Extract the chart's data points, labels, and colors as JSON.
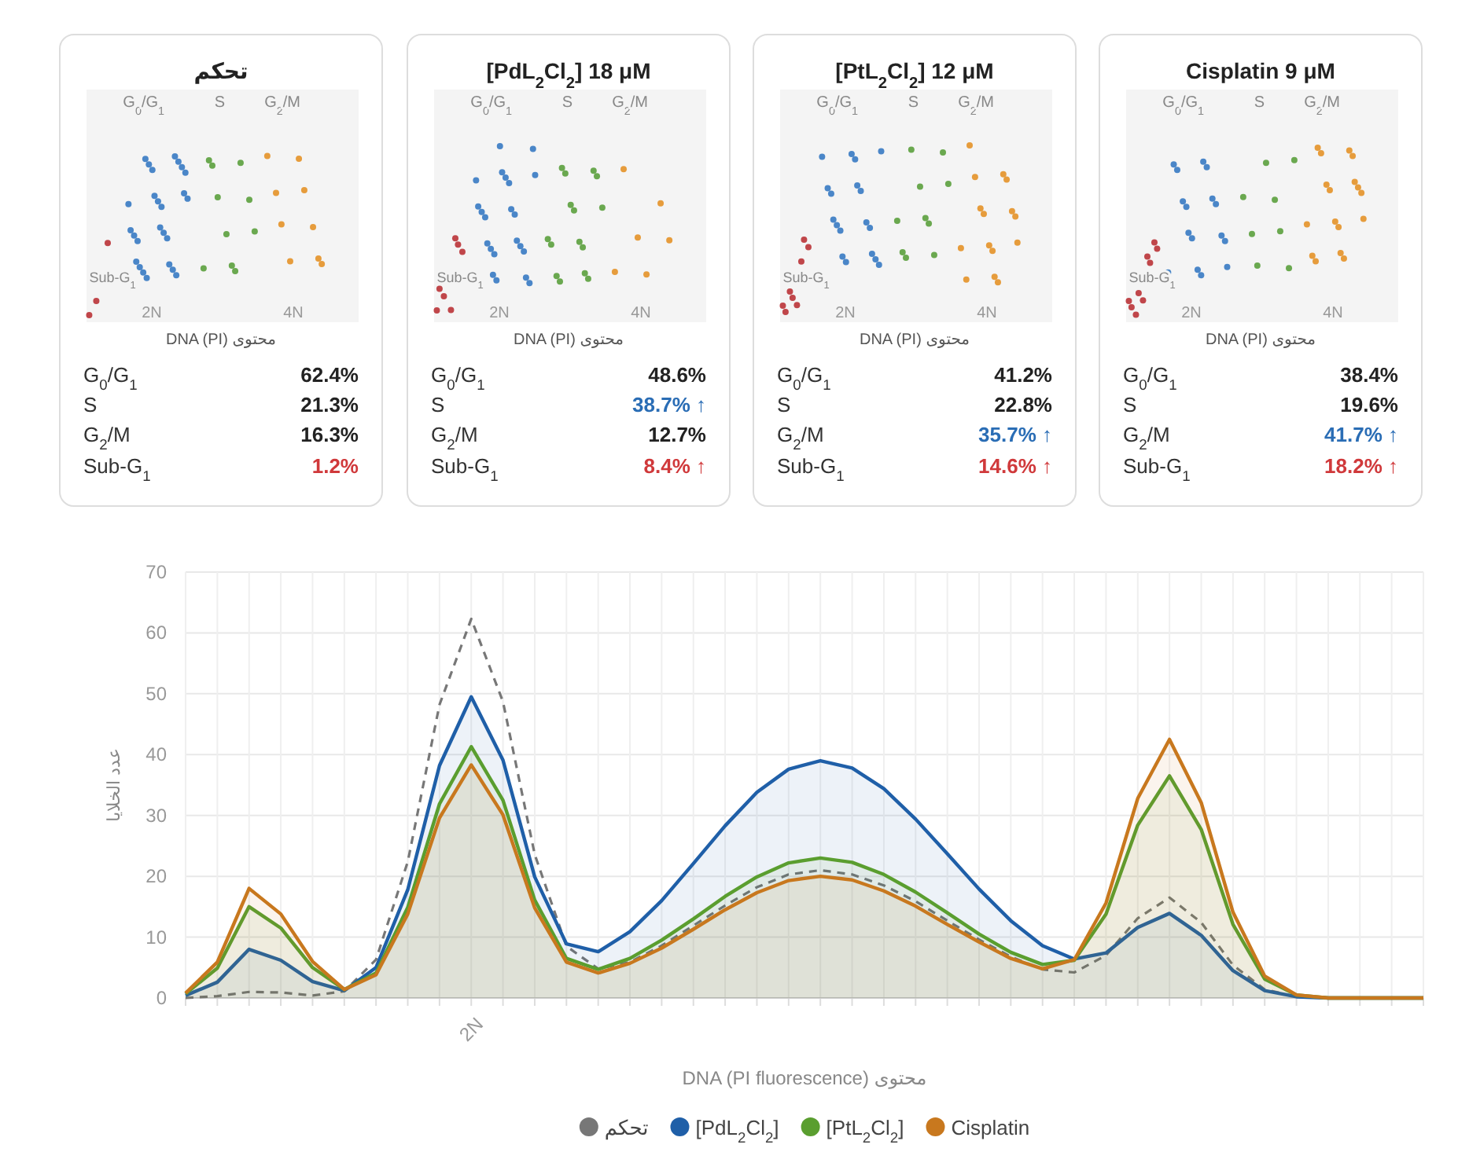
{
  "chart_data": [
    {
      "type": "other",
      "title": "تحكم",
      "xlabel": "محتوى DNA (PI)",
      "annotations": [
        "G$_{0}$/G$_{1}$",
        "S",
        "G$_{2}$/M",
        "2N",
        "4N",
        "Sub-G$_{1}$"
      ],
      "categories": [
        "G$_{0}$/G$_{1}$",
        "S",
        "G$_{2}$/M",
        "Sub-G$_{1}$"
      ],
      "value_labels": [
        "62.4%",
        "21.3%",
        "16.3%",
        "1.2%"
      ],
      "colors": [
        "#222222",
        "#222222",
        "#222222",
        "#d0393b"
      ]
    },
    {
      "type": "other",
      "title": "[PdL$_{2}$Cl$_{2}$] 18 μM",
      "xlabel": "محتوى DNA (PI)",
      "annotations": [
        "G$_{0}$/G$_{1}$",
        "S",
        "G$_{2}$/M",
        "2N",
        "4N",
        "Sub-G$_{1}$"
      ],
      "categories": [
        "G$_{0}$/G$_{1}$",
        "S",
        "G$_{2}$/M",
        "Sub-G$_{1}$"
      ],
      "value_labels": [
        "48.6%",
        "38.7% ↑",
        "12.7%",
        "8.4% ↑"
      ],
      "colors": [
        "#222222",
        "#2a6db5",
        "#222222",
        "#d0393b"
      ]
    },
    {
      "type": "other",
      "title": "[PtL$_{2}$Cl$_{2}$] 12 μM",
      "xlabel": "محتوى DNA (PI)",
      "annotations": [
        "G$_{0}$/G$_{1}$",
        "S",
        "G$_{2}$/M",
        "2N",
        "4N",
        "Sub-G$_{1}$"
      ],
      "categories": [
        "G$_{0}$/G$_{1}$",
        "S",
        "G$_{2}$/M",
        "Sub-G$_{1}$"
      ],
      "value_labels": [
        "41.2%",
        "22.8%",
        "35.7% ↑",
        "14.6% ↑"
      ],
      "colors": [
        "#222222",
        "#222222",
        "#2a6db5",
        "#d0393b"
      ]
    },
    {
      "type": "other",
      "title": "Cisplatin 9 μM",
      "xlabel": "محتوى DNA (PI)",
      "annotations": [
        "G$_{0}$/G$_{1}$",
        "S",
        "G$_{2}$/M",
        "2N",
        "4N",
        "Sub-G$_{1}$"
      ],
      "categories": [
        "G$_{0}$/G$_{1}$",
        "S",
        "G$_{2}$/M",
        "Sub-G$_{1}$"
      ],
      "value_labels": [
        "38.4%",
        "19.6%",
        "41.7% ↑",
        "18.2% ↑"
      ],
      "colors": [
        "#222222",
        "#222222",
        "#2a6db5",
        "#d0393b"
      ]
    },
    {
      "type": "area",
      "xlabel": "محتوى DNA (PI fluorescence)",
      "ylabel": "عدد الخلايا",
      "grid": true,
      "legend": "bottom",
      "ylim": [
        0,
        70
      ],
      "yticks": [
        0,
        10,
        20,
        30,
        40,
        50,
        60,
        70
      ],
      "categories": [
        null,
        null,
        null,
        null,
        null,
        null,
        null,
        null,
        null,
        "2N",
        null,
        null,
        null,
        null,
        null,
        null,
        null,
        null,
        null,
        null,
        null,
        null,
        null,
        null,
        null,
        null,
        null,
        null,
        null,
        null,
        null,
        null,
        null,
        null,
        null,
        null,
        null,
        null,
        null,
        null
      ],
      "series": [
        {
          "name": "تحكم",
          "type": "line",
          "line_style": "dashed",
          "color": "#777777",
          "values": [
            0.0,
            0.3,
            1.0,
            0.9,
            0.4,
            1.1,
            6.3,
            22.4,
            48.2,
            62.3,
            48.7,
            23.6,
            8.5,
            4.8,
            5.9,
            8.6,
            11.9,
            15.2,
            18.2,
            20.3,
            21.0,
            20.3,
            18.5,
            15.9,
            12.7,
            9.6,
            6.8,
            4.7,
            4.2,
            7.0,
            13.1,
            16.5,
            12.4,
            5.4,
            1.4,
            0.2,
            0.0,
            0.0,
            0.0,
            0.0
          ]
        },
        {
          "name": "[PdL$_{2}$Cl$_{2}$]",
          "color": "#1f5fa8",
          "values": [
            0.4,
            2.6,
            8.0,
            6.2,
            2.7,
            1.2,
            5.0,
            17.8,
            38.2,
            49.5,
            39.1,
            19.9,
            8.9,
            7.6,
            10.9,
            16.0,
            22.1,
            28.3,
            33.8,
            37.6,
            39.0,
            37.8,
            34.4,
            29.4,
            23.7,
            17.9,
            12.7,
            8.6,
            6.4,
            7.4,
            11.6,
            13.9,
            10.3,
            4.5,
            1.2,
            0.2,
            0.0,
            0.0,
            0.0,
            0.0
          ]
        },
        {
          "name": "[PtL$_{2}$Cl$_{2}$]",
          "color": "#5a9e2f",
          "values": [
            0.7,
            4.9,
            15.0,
            11.5,
            5.0,
            1.4,
            4.1,
            14.9,
            31.9,
            41.3,
            32.5,
            16.1,
            6.5,
            4.7,
            6.5,
            9.5,
            13.0,
            16.7,
            19.9,
            22.2,
            23.0,
            22.3,
            20.3,
            17.4,
            14.0,
            10.5,
            7.5,
            5.5,
            6.2,
            13.8,
            28.4,
            36.5,
            27.7,
            12.1,
            3.1,
            0.5,
            0.0,
            0.0,
            0.0,
            0.0
          ]
        },
        {
          "name": "Cisplatin",
          "color": "#c8781e",
          "values": [
            0.8,
            5.9,
            18.0,
            13.8,
            6.0,
            1.4,
            3.8,
            13.8,
            29.6,
            38.3,
            30.1,
            14.8,
            5.9,
            4.1,
            5.7,
            8.2,
            11.3,
            14.5,
            17.3,
            19.3,
            20.0,
            19.4,
            17.6,
            15.1,
            12.1,
            9.2,
            6.5,
            4.8,
            6.3,
            15.6,
            32.8,
            42.5,
            32.1,
            14.1,
            3.6,
            0.5,
            0.0,
            0.0,
            0.0,
            0.0
          ]
        }
      ]
    }
  ]
}
